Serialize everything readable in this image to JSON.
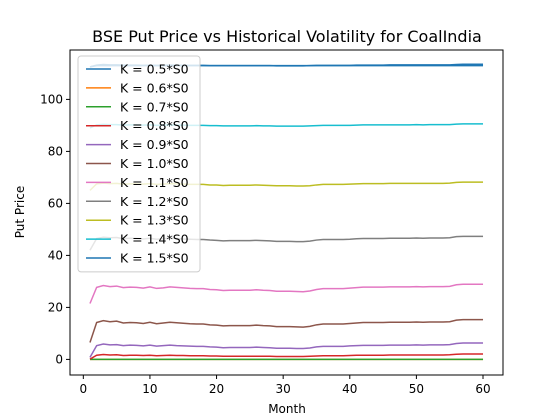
{
  "chart_data": {
    "type": "line",
    "title": "BSE Put Price vs Historical Volatility for CoalIndia",
    "xlabel": "Month",
    "ylabel": "Put Price",
    "xlim": [
      -2,
      63
    ],
    "ylim": [
      -6,
      119
    ],
    "xticks": [
      0,
      10,
      20,
      30,
      40,
      50,
      60
    ],
    "yticks": [
      0,
      20,
      40,
      60,
      80,
      100
    ],
    "grid": false,
    "legend_position": "top-left",
    "x": [
      1,
      2,
      3,
      4,
      5,
      6,
      7,
      8,
      9,
      10,
      11,
      12,
      13,
      14,
      15,
      16,
      17,
      18,
      19,
      20,
      21,
      22,
      23,
      24,
      25,
      26,
      27,
      28,
      29,
      30,
      31,
      32,
      33,
      34,
      35,
      36,
      37,
      38,
      39,
      40,
      41,
      42,
      43,
      44,
      45,
      46,
      47,
      48,
      49,
      50,
      51,
      52,
      53,
      54,
      55,
      56,
      57,
      58,
      59,
      60
    ],
    "series": [
      {
        "name": "K = 0.5*S0",
        "color": "#1f77b4",
        "values": [
          112.5,
          113.0,
          113.0,
          113.0,
          113.0,
          113.0,
          113.0,
          113.0,
          113.0,
          113.0,
          113.0,
          113.0,
          113.0,
          113.0,
          113.0,
          113.0,
          113.0,
          113.0,
          113.0,
          113.0,
          113.0,
          113.0,
          113.0,
          113.0,
          113.0,
          113.0,
          113.0,
          113.0,
          113.0,
          113.0,
          113.0,
          113.0,
          113.0,
          113.0,
          113.0,
          113.0,
          113.0,
          113.0,
          113.0,
          113.0,
          113.0,
          113.0,
          113.0,
          113.0,
          113.0,
          113.0,
          113.0,
          113.0,
          113.0,
          113.0,
          113.0,
          113.0,
          113.0,
          113.0,
          113.0,
          113.0,
          113.0,
          113.0,
          113.0,
          113.0
        ]
      },
      {
        "name": "K = 0.6*S0",
        "color": "#ff7f0e",
        "values": [
          0,
          0,
          0,
          0,
          0,
          0,
          0,
          0,
          0,
          0,
          0,
          0,
          0,
          0,
          0,
          0,
          0,
          0,
          0,
          0,
          0,
          0,
          0,
          0,
          0,
          0,
          0,
          0,
          0,
          0,
          0,
          0,
          0,
          0,
          0,
          0,
          0,
          0,
          0,
          0,
          0,
          0,
          0,
          0,
          0,
          0,
          0,
          0,
          0,
          0,
          0,
          0,
          0,
          0,
          0,
          0,
          0,
          0,
          0,
          0
        ]
      },
      {
        "name": "K = 0.7*S0",
        "color": "#2ca02c",
        "values": [
          0,
          0,
          0,
          0,
          0,
          0,
          0,
          0,
          0,
          0,
          0,
          0,
          0,
          0,
          0,
          0,
          0,
          0,
          0,
          0,
          0,
          0,
          0,
          0,
          0,
          0,
          0,
          0,
          0,
          0,
          0,
          0,
          0,
          0,
          0,
          0,
          0,
          0,
          0,
          0,
          0,
          0,
          0,
          0,
          0,
          0,
          0,
          0,
          0,
          0,
          0,
          0,
          0,
          0,
          0,
          0,
          0,
          0,
          0,
          0
        ]
      },
      {
        "name": "K = 0.8*S0",
        "color": "#d62728",
        "values": [
          0.1,
          1.6,
          1.9,
          1.7,
          1.8,
          1.5,
          1.6,
          1.6,
          1.5,
          1.6,
          1.4,
          1.5,
          1.6,
          1.5,
          1.5,
          1.4,
          1.4,
          1.4,
          1.3,
          1.3,
          1.2,
          1.2,
          1.2,
          1.2,
          1.2,
          1.2,
          1.2,
          1.2,
          1.1,
          1.1,
          1.1,
          1.1,
          1.1,
          1.2,
          1.3,
          1.4,
          1.4,
          1.4,
          1.4,
          1.5,
          1.6,
          1.6,
          1.6,
          1.6,
          1.6,
          1.7,
          1.7,
          1.7,
          1.7,
          1.7,
          1.7,
          1.7,
          1.7,
          1.7,
          1.8,
          2.0,
          2.1,
          2.1,
          2.1,
          2.1
        ]
      },
      {
        "name": "K = 0.9*S0",
        "color": "#9467bd",
        "values": [
          0.8,
          5.3,
          5.9,
          5.6,
          5.7,
          5.3,
          5.5,
          5.4,
          5.2,
          5.5,
          5.1,
          5.3,
          5.5,
          5.3,
          5.2,
          5.1,
          5.0,
          5.0,
          4.8,
          4.7,
          4.5,
          4.6,
          4.6,
          4.6,
          4.6,
          4.7,
          4.6,
          4.5,
          4.3,
          4.3,
          4.3,
          4.2,
          4.2,
          4.4,
          4.8,
          5.0,
          5.0,
          5.0,
          5.0,
          5.2,
          5.3,
          5.4,
          5.4,
          5.4,
          5.4,
          5.5,
          5.5,
          5.5,
          5.5,
          5.6,
          5.5,
          5.6,
          5.6,
          5.6,
          5.7,
          6.1,
          6.3,
          6.3,
          6.3,
          6.3
        ]
      },
      {
        "name": "K = 1.0*S0",
        "color": "#8c564b",
        "values": [
          6.5,
          14.2,
          14.9,
          14.5,
          14.7,
          14.0,
          14.2,
          14.1,
          13.8,
          14.3,
          13.7,
          14.0,
          14.3,
          14.1,
          13.9,
          13.7,
          13.6,
          13.6,
          13.3,
          13.2,
          12.9,
          13.0,
          13.0,
          13.0,
          13.0,
          13.2,
          13.0,
          12.9,
          12.6,
          12.6,
          12.6,
          12.5,
          12.4,
          12.7,
          13.3,
          13.6,
          13.6,
          13.6,
          13.6,
          13.8,
          14.0,
          14.2,
          14.2,
          14.2,
          14.2,
          14.3,
          14.3,
          14.3,
          14.3,
          14.4,
          14.3,
          14.4,
          14.4,
          14.4,
          14.5,
          15.1,
          15.3,
          15.3,
          15.3,
          15.3
        ]
      },
      {
        "name": "K = 1.1*S0",
        "color": "#e377c2",
        "values": [
          21.5,
          27.7,
          28.4,
          28.0,
          28.2,
          27.6,
          27.8,
          27.7,
          27.4,
          27.9,
          27.3,
          27.5,
          27.9,
          27.7,
          27.5,
          27.3,
          27.2,
          27.2,
          26.9,
          26.8,
          26.5,
          26.6,
          26.6,
          26.6,
          26.6,
          26.8,
          26.6,
          26.5,
          26.2,
          26.2,
          26.2,
          26.1,
          26.0,
          26.3,
          26.9,
          27.2,
          27.2,
          27.2,
          27.2,
          27.4,
          27.6,
          27.8,
          27.8,
          27.8,
          27.8,
          27.9,
          27.9,
          27.9,
          27.9,
          28.0,
          27.9,
          28.0,
          28.0,
          28.0,
          28.1,
          28.7,
          28.9,
          28.9,
          28.9,
          28.9
        ]
      },
      {
        "name": "K = 1.2*S0",
        "color": "#7f7f7f",
        "values": [
          42.0,
          46.5,
          47.0,
          46.8,
          46.9,
          46.4,
          46.6,
          46.5,
          46.3,
          46.6,
          46.2,
          46.4,
          46.6,
          46.5,
          46.3,
          46.2,
          46.1,
          46.1,
          45.9,
          45.8,
          45.6,
          45.7,
          45.7,
          45.7,
          45.7,
          45.8,
          45.7,
          45.6,
          45.4,
          45.4,
          45.4,
          45.3,
          45.3,
          45.5,
          45.9,
          46.1,
          46.1,
          46.1,
          46.1,
          46.2,
          46.4,
          46.5,
          46.5,
          46.5,
          46.5,
          46.6,
          46.6,
          46.6,
          46.6,
          46.7,
          46.6,
          46.7,
          46.7,
          46.7,
          46.8,
          47.2,
          47.3,
          47.3,
          47.3,
          47.3
        ]
      },
      {
        "name": "K = 1.3*S0",
        "color": "#bcbd22",
        "values": [
          65.0,
          67.5,
          67.8,
          67.6,
          67.7,
          67.4,
          67.5,
          67.5,
          67.4,
          67.6,
          67.3,
          67.4,
          67.6,
          67.5,
          67.4,
          67.3,
          67.3,
          67.3,
          67.1,
          67.1,
          66.9,
          67.0,
          67.0,
          67.0,
          67.0,
          67.1,
          67.0,
          66.9,
          66.8,
          66.8,
          66.8,
          66.7,
          66.7,
          66.8,
          67.1,
          67.3,
          67.3,
          67.3,
          67.3,
          67.4,
          67.5,
          67.6,
          67.6,
          67.6,
          67.6,
          67.7,
          67.7,
          67.7,
          67.7,
          67.7,
          67.7,
          67.7,
          67.7,
          67.7,
          67.8,
          68.1,
          68.2,
          68.2,
          68.2,
          68.2
        ]
      },
      {
        "name": "K = 1.4*S0",
        "color": "#17becf",
        "values": [
          89.0,
          90.2,
          90.4,
          90.3,
          90.3,
          90.1,
          90.2,
          90.2,
          90.1,
          90.2,
          90.0,
          90.1,
          90.2,
          90.1,
          90.1,
          90.0,
          90.0,
          90.0,
          89.9,
          89.9,
          89.8,
          89.8,
          89.8,
          89.8,
          89.8,
          89.9,
          89.8,
          89.8,
          89.7,
          89.7,
          89.7,
          89.7,
          89.7,
          89.8,
          89.9,
          90.0,
          90.0,
          90.0,
          90.0,
          90.0,
          90.1,
          90.2,
          90.2,
          90.2,
          90.2,
          90.2,
          90.2,
          90.2,
          90.2,
          90.3,
          90.2,
          90.3,
          90.3,
          90.3,
          90.3,
          90.5,
          90.6,
          90.6,
          90.6,
          90.6
        ]
      },
      {
        "name": "K = 1.5*S0",
        "color": "#1f77b4",
        "values": [
          112.5,
          113.2,
          113.4,
          113.3,
          113.3,
          113.2,
          113.2,
          113.2,
          113.1,
          113.2,
          113.1,
          113.1,
          113.2,
          113.2,
          113.1,
          113.1,
          113.1,
          113.1,
          113.0,
          113.0,
          113.0,
          113.0,
          113.0,
          113.0,
          113.0,
          113.0,
          113.0,
          113.0,
          112.9,
          112.9,
          112.9,
          112.9,
          112.9,
          113.0,
          113.1,
          113.1,
          113.1,
          113.1,
          113.1,
          113.1,
          113.2,
          113.2,
          113.2,
          113.2,
          113.2,
          113.3,
          113.3,
          113.3,
          113.3,
          113.3,
          113.3,
          113.3,
          113.3,
          113.3,
          113.3,
          113.4,
          113.5,
          113.5,
          113.5,
          113.5
        ]
      }
    ]
  }
}
